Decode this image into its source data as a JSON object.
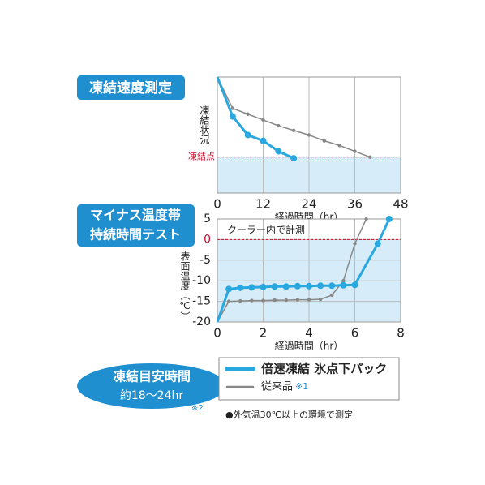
{
  "chart_data": [
    {
      "type": "line",
      "title": "凍結速度測定",
      "y_label": "凍結状況",
      "x_label": "経過時間（hr）",
      "xlim": [
        0,
        48
      ],
      "xticks": [
        0,
        12,
        24,
        36,
        48
      ],
      "ylim": [
        0,
        100
      ],
      "grid": true,
      "reference_line": {
        "label": "凍結点",
        "value": 31,
        "color": "#c8102e"
      },
      "series": [
        {
          "name": "倍速凍結 氷点下パック",
          "color": "#29a8e0",
          "x": [
            0,
            4,
            8,
            12,
            16,
            20
          ],
          "values": [
            100,
            66,
            50,
            45,
            36,
            30
          ]
        },
        {
          "name": "従来品",
          "color": "#888888",
          "x": [
            0,
            4,
            8,
            12,
            16,
            20,
            24,
            28,
            32,
            36,
            40
          ],
          "values": [
            100,
            73,
            68,
            63,
            58,
            54,
            50,
            45,
            41,
            36,
            31
          ]
        }
      ]
    },
    {
      "type": "line",
      "title_lines": [
        "マイナス温度帯",
        "持続時間テスト"
      ],
      "y_label": "表面温度（℃）",
      "x_label": "経過時間（hr）",
      "annotation": "クーラー内で計測",
      "xlim": [
        0,
        8
      ],
      "xticks": [
        0,
        2,
        4,
        6,
        8
      ],
      "ylim": [
        -20,
        5
      ],
      "yticks": [
        -20,
        -15,
        -10,
        -5,
        0,
        5
      ],
      "grid": true,
      "reference_line": {
        "value": 0,
        "color": "#c8102e"
      },
      "series": [
        {
          "name": "倍速凍結 氷点下パック",
          "color": "#29a8e0",
          "x": [
            0,
            0.5,
            1,
            1.5,
            2,
            2.5,
            3,
            3.5,
            4,
            4.5,
            5,
            5.5,
            6,
            7,
            7.5
          ],
          "values": [
            -20,
            -12,
            -11.7,
            -11.6,
            -11.5,
            -11.4,
            -11.4,
            -11.3,
            -11.3,
            -11.2,
            -11.2,
            -11.1,
            -11,
            -1,
            5
          ]
        },
        {
          "name": "従来品",
          "color": "#888888",
          "x": [
            0,
            0.5,
            1,
            1.5,
            2,
            2.5,
            3,
            3.5,
            4,
            4.5,
            5,
            5.5,
            6,
            6.5
          ],
          "values": [
            -20,
            -15,
            -14.9,
            -14.8,
            -14.8,
            -14.7,
            -14.7,
            -14.6,
            -14.6,
            -14.5,
            -13.5,
            -10,
            -1,
            5
          ]
        }
      ]
    }
  ],
  "badge": {
    "title": "凍結目安時間",
    "subtitle": "約18〜24hr",
    "note": "※2"
  },
  "legend_mark": "※1",
  "footnote": "●外気温30℃以上の環境で測定"
}
